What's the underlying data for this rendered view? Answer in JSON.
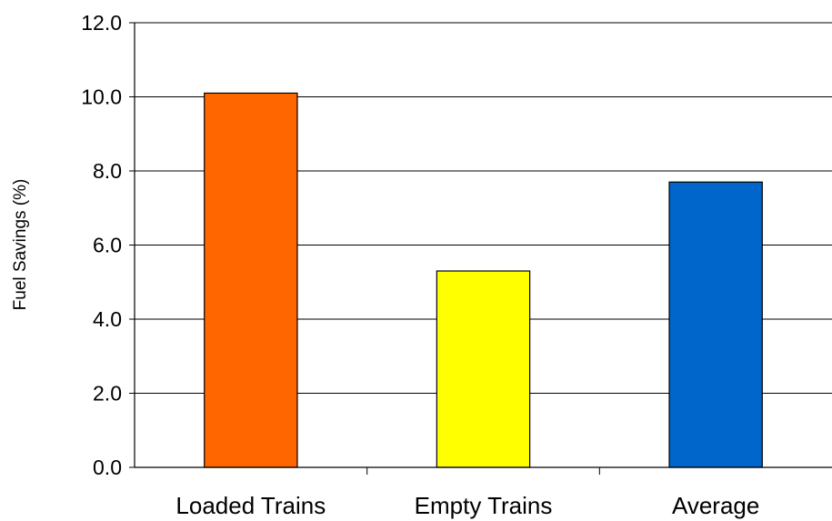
{
  "chart_data": {
    "type": "bar",
    "title": "",
    "xlabel": "",
    "ylabel": "Fuel Savings (%)",
    "categories": [
      "Loaded Trains",
      "Empty Trains",
      "Average"
    ],
    "values": [
      10.1,
      5.3,
      7.7
    ],
    "colors": [
      "#ff6600",
      "#ffff00",
      "#0066cc"
    ],
    "ylim": [
      0,
      12
    ],
    "yticks": [
      0,
      2,
      4,
      6,
      8,
      10,
      12
    ],
    "ytick_labels": [
      "0.0",
      "2.0",
      "4.0",
      "6.0",
      "8.0",
      "10.0",
      "12.0"
    ],
    "grid": true,
    "legend": "none"
  }
}
